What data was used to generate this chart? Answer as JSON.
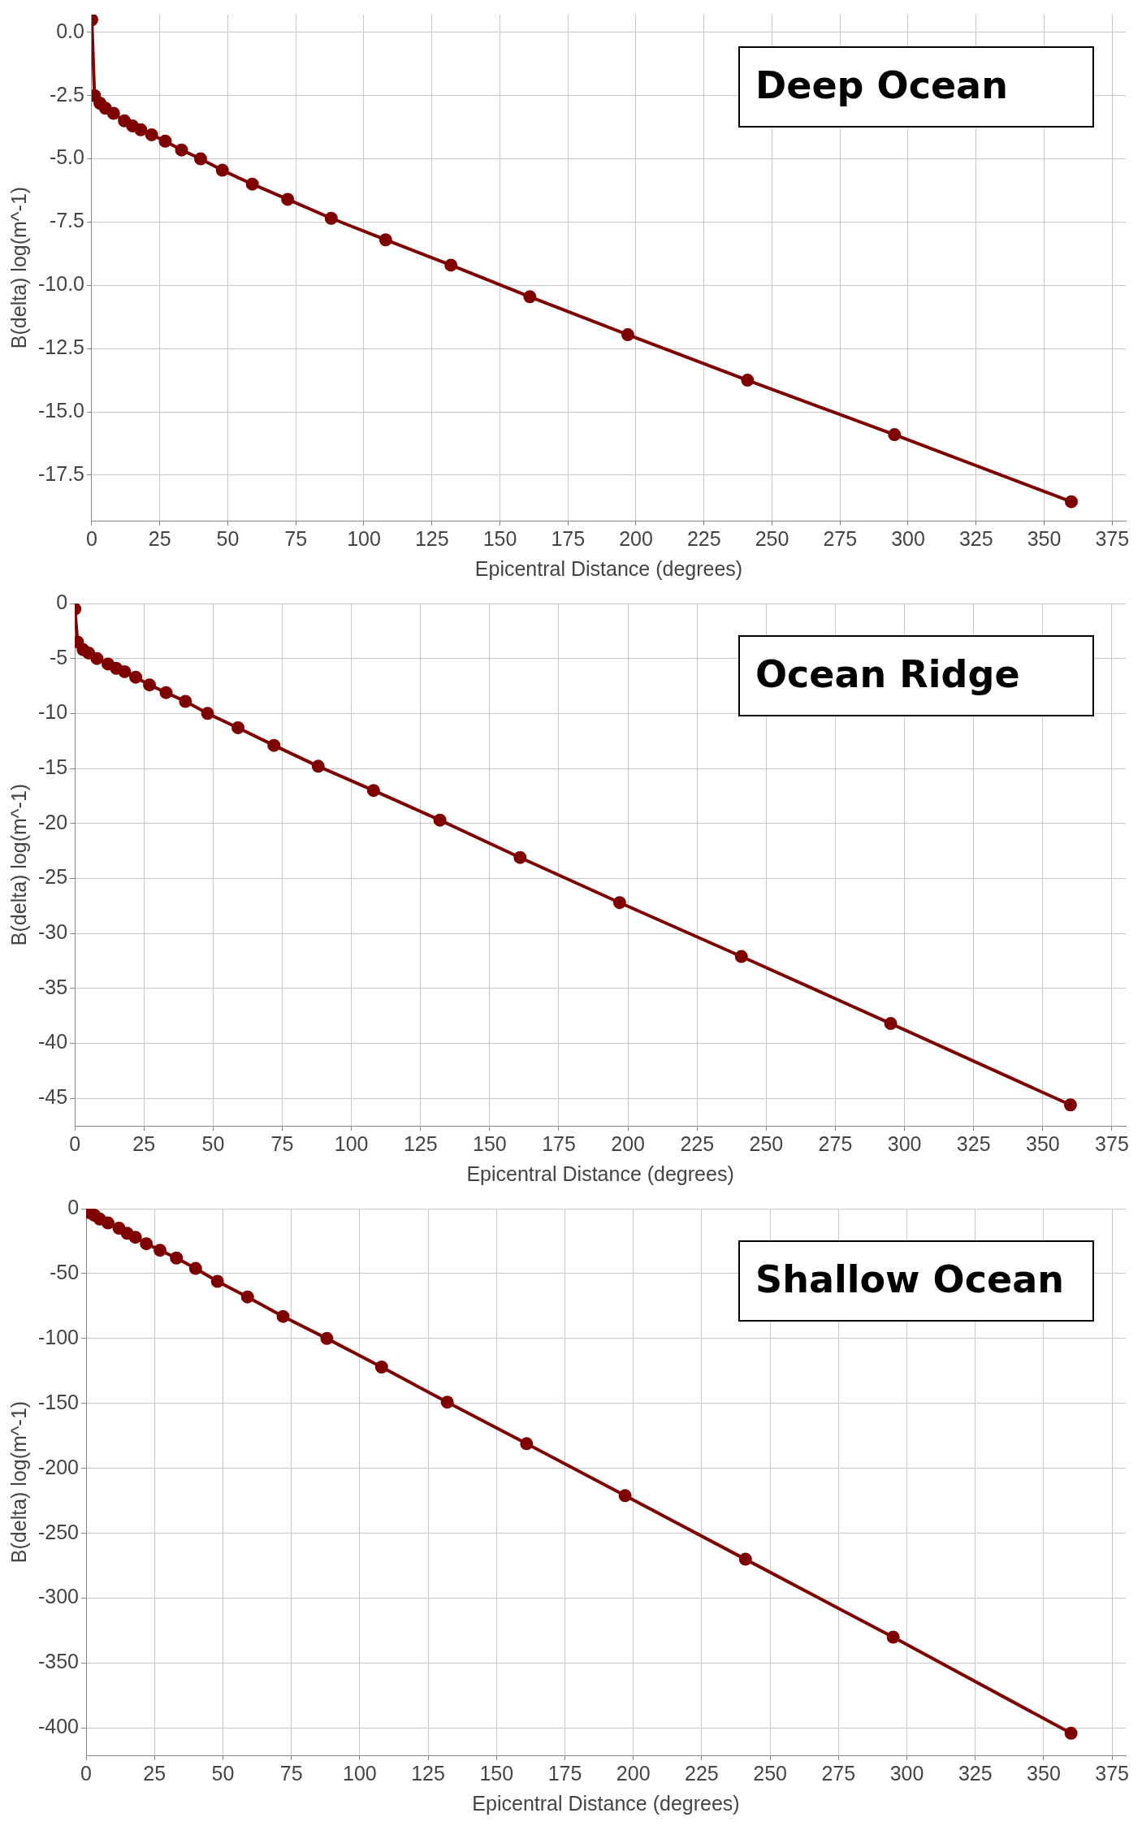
{
  "chart_data": [
    {
      "type": "line",
      "xlabel": "Epicentral Distance (degrees)",
      "ylabel": "B(delta) log(m^-1)",
      "annotations": [
        "Deep Ocean"
      ],
      "marker": "circle",
      "grid": true,
      "x": [
        0,
        1,
        3,
        5,
        8,
        12,
        15,
        18,
        22,
        27,
        33,
        40,
        48,
        59,
        72,
        88,
        108,
        132,
        161,
        197,
        241,
        295,
        360
      ],
      "series": [
        {
          "color": "#7f0000",
          "values": [
            0.5,
            -2.5,
            -2.8,
            -3.0,
            -3.2,
            -3.5,
            -3.7,
            -3.85,
            -4.05,
            -4.3,
            -4.65,
            -5.0,
            -5.45,
            -6.0,
            -6.6,
            -7.35,
            -8.2,
            -9.2,
            -10.45,
            -11.95,
            -13.75,
            -15.9,
            -18.55
          ]
        }
      ],
      "xlim": [
        0,
        380
      ],
      "xticks": [
        0,
        25,
        50,
        75,
        100,
        125,
        150,
        175,
        200,
        225,
        250,
        275,
        300,
        325,
        350,
        375
      ],
      "ylim": [
        -19.3,
        0.7
      ],
      "yticks": [
        {
          "value": 0,
          "label": "0.0"
        },
        -2.5,
        {
          "value": -5,
          "label": "-5.0"
        },
        -7.5,
        {
          "value": -10,
          "label": "-10.0"
        },
        -12.5,
        {
          "value": -15,
          "label": "-15.0"
        },
        -17.5
      ]
    },
    {
      "type": "line",
      "xlabel": "Epicentral Distance (degrees)",
      "ylabel": "B(delta) log(m^-1)",
      "annotations": [
        "Ocean Ridge"
      ],
      "marker": "circle",
      "grid": true,
      "x": [
        0,
        1,
        3,
        5,
        8,
        12,
        15,
        18,
        22,
        27,
        33,
        40,
        48,
        59,
        72,
        88,
        108,
        132,
        161,
        197,
        241,
        295,
        360
      ],
      "series": [
        {
          "color": "#7f0000",
          "values": [
            -0.5,
            -3.5,
            -4.2,
            -4.5,
            -5.0,
            -5.5,
            -5.9,
            -6.2,
            -6.7,
            -7.4,
            -8.1,
            -8.9,
            -10.0,
            -11.3,
            -12.9,
            -14.8,
            -17.0,
            -19.7,
            -23.1,
            -27.2,
            -32.1,
            -38.2,
            -45.6
          ]
        }
      ],
      "xlim": [
        0,
        380
      ],
      "xticks": [
        0,
        25,
        50,
        75,
        100,
        125,
        150,
        175,
        200,
        225,
        250,
        275,
        300,
        325,
        350,
        375
      ],
      "ylim": [
        -47.5,
        0
      ],
      "yticks": [
        0,
        -5,
        -10,
        -15,
        -20,
        -25,
        -30,
        -35,
        -40,
        -45
      ]
    },
    {
      "type": "line",
      "xlabel": "Epicentral Distance (degrees)",
      "ylabel": "B(delta) log(m^-1)",
      "annotations": [
        "Shallow Ocean"
      ],
      "marker": "circle",
      "grid": true,
      "x": [
        1,
        3,
        5,
        8,
        12,
        15,
        18,
        22,
        27,
        33,
        40,
        48,
        59,
        72,
        88,
        108,
        132,
        161,
        197,
        241,
        295,
        360
      ],
      "series": [
        {
          "color": "#7f0000",
          "values": [
            -3,
            -5,
            -8,
            -11,
            -15,
            -19,
            -22,
            -27,
            -32,
            -38,
            -46,
            -56,
            -68,
            -83,
            -100,
            -122,
            -149,
            -181,
            -221,
            -270,
            -330,
            -404
          ]
        }
      ],
      "xlim": [
        0,
        380
      ],
      "xticks": [
        0,
        25,
        50,
        75,
        100,
        125,
        150,
        175,
        200,
        225,
        250,
        275,
        300,
        325,
        350,
        375
      ],
      "ylim": [
        -421,
        0
      ],
      "yticks": [
        0,
        -50,
        -100,
        -150,
        -200,
        -250,
        -300,
        -350,
        -400
      ]
    }
  ]
}
